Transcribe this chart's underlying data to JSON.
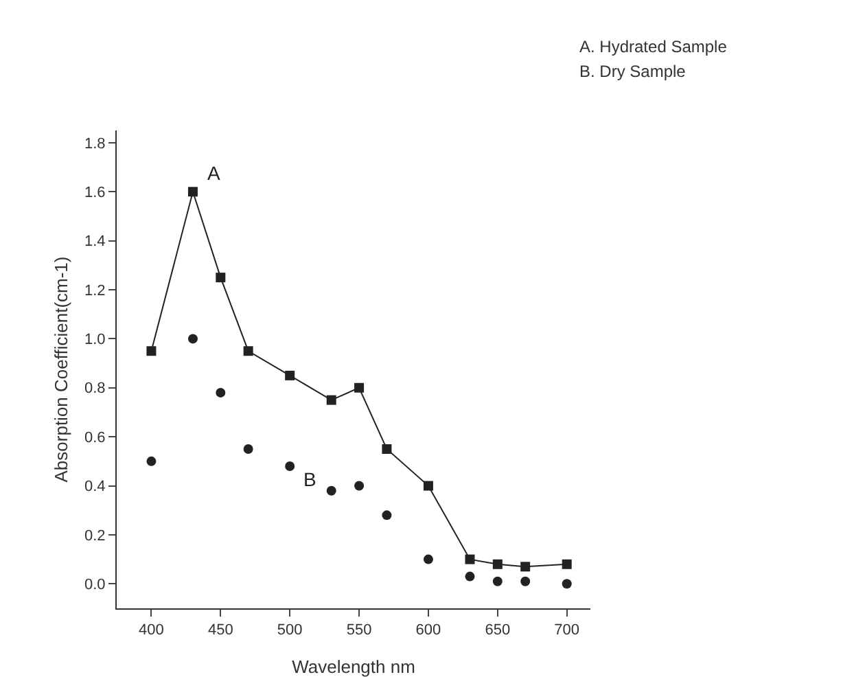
{
  "chart_data": {
    "type": "line",
    "xlabel": "Wavelength nm",
    "ylabel": "Absorption Coefficient(cm-1)",
    "x": [
      400,
      430,
      450,
      470,
      500,
      530,
      550,
      570,
      600,
      630,
      650,
      670,
      700
    ],
    "series": [
      {
        "name": "A",
        "color": "#222222",
        "marker": "square",
        "values": [
          0.95,
          1.6,
          1.25,
          0.95,
          0.85,
          0.75,
          0.8,
          0.55,
          0.4,
          0.1,
          0.08,
          0.07,
          0.08
        ]
      },
      {
        "type": "scatter",
        "name": "B",
        "color": "#222222",
        "marker": "circle",
        "values": [
          0.5,
          1.0,
          0.78,
          0.55,
          0.48,
          0.38,
          0.4,
          0.28,
          0.1,
          0.03,
          0.01,
          0.01,
          0.0
        ]
      }
    ],
    "xlim": [
      375,
      717
    ],
    "xticks": [
      400,
      450,
      500,
      550,
      600,
      650,
      700
    ],
    "ylim": [
      -0.1,
      1.85
    ],
    "yticks": [
      {
        "value": 0,
        "label": "0.0"
      },
      {
        "value": 0.2,
        "label": "0.2"
      },
      {
        "value": 0.4,
        "label": "0.4"
      },
      {
        "value": 0.6,
        "label": "0.6"
      },
      {
        "value": 0.8,
        "label": "0.8"
      },
      {
        "value": 1,
        "label": "1.0"
      },
      {
        "value": 1.2,
        "label": "1.2"
      },
      {
        "value": 1.4,
        "label": "1.4"
      },
      {
        "value": 1.6,
        "label": "1.6"
      },
      {
        "value": 1.8,
        "label": "1.8"
      }
    ],
    "grid": false,
    "annotations": [
      "A. Hydrated Sample",
      "B. Dry Sample"
    ]
  }
}
